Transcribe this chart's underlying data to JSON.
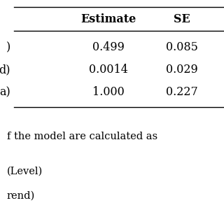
{
  "col_headers": [
    "Estimate",
    "SE"
  ],
  "row_labels": [
    ")",
    "d)",
    "a)"
  ],
  "estimates": [
    "0.499",
    "0.0014",
    "1.000"
  ],
  "se_values": [
    "0.085",
    "0.029",
    "0.227"
  ],
  "bottom_text_line1": "f the model are calculated as",
  "bottom_text_line2": "(Level)",
  "bottom_text_line3": "rend)",
  "bg_color": "#ffffff",
  "text_color": "#000000",
  "font_size_header": 11.5,
  "font_size_data": 11.5,
  "font_size_bottom": 10.5
}
